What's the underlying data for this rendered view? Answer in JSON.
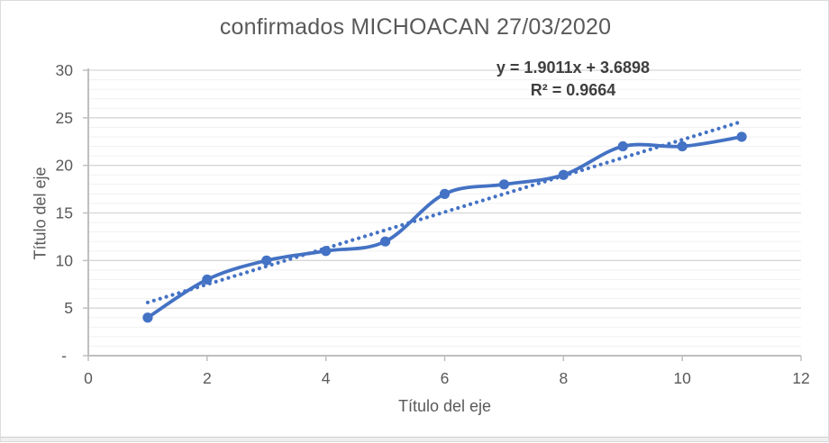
{
  "title": "confirmados MICHOACAN 27/03/2020",
  "chart_data": {
    "type": "line",
    "subtype": "scatter-smooth-with-markers",
    "title": "confirmados MICHOACAN 27/03/2020",
    "xlabel": "Título del eje",
    "ylabel": "Título del eje",
    "x": [
      1,
      2,
      3,
      4,
      5,
      6,
      7,
      8,
      9,
      10,
      11
    ],
    "values": [
      4,
      8,
      10,
      11,
      12,
      17,
      18,
      19,
      22,
      22,
      23
    ],
    "xlim": [
      0,
      12
    ],
    "ylim": [
      0,
      30
    ],
    "x_ticks": [
      {
        "v": 0,
        "label": "0"
      },
      {
        "v": 2,
        "label": "2"
      },
      {
        "v": 4,
        "label": "4"
      },
      {
        "v": 6,
        "label": "6"
      },
      {
        "v": 8,
        "label": "8"
      },
      {
        "v": 10,
        "label": "10"
      },
      {
        "v": 12,
        "label": "12"
      }
    ],
    "y_ticks": [
      {
        "v": 0,
        "label": "-"
      },
      {
        "v": 5,
        "label": "5"
      },
      {
        "v": 10,
        "label": "10"
      },
      {
        "v": 15,
        "label": "15"
      },
      {
        "v": 20,
        "label": "20"
      },
      {
        "v": 25,
        "label": "25"
      },
      {
        "v": 30,
        "label": "30"
      }
    ],
    "y_major_step": 5,
    "y_minor_step": 1,
    "grid": "horizontal-major-and-minor",
    "legend": "none",
    "trendline": {
      "type": "linear",
      "slope": 1.9011,
      "intercept": 3.6898,
      "r_squared": 0.9664,
      "equation_label": "y = 1.9011x + 3.6898",
      "r2_label": "R² = 0.9664",
      "x_start": 1,
      "x_end": 11,
      "style": "dotted"
    },
    "colors": {
      "series": "#4472C4",
      "trendline": "#4472C4",
      "major_gridline": "#D6D6D6",
      "minor_gridline": "#F1F1F1",
      "axis": "#BFBFBF",
      "text": "#595959",
      "annotation_text": "#3F3F3F"
    }
  }
}
